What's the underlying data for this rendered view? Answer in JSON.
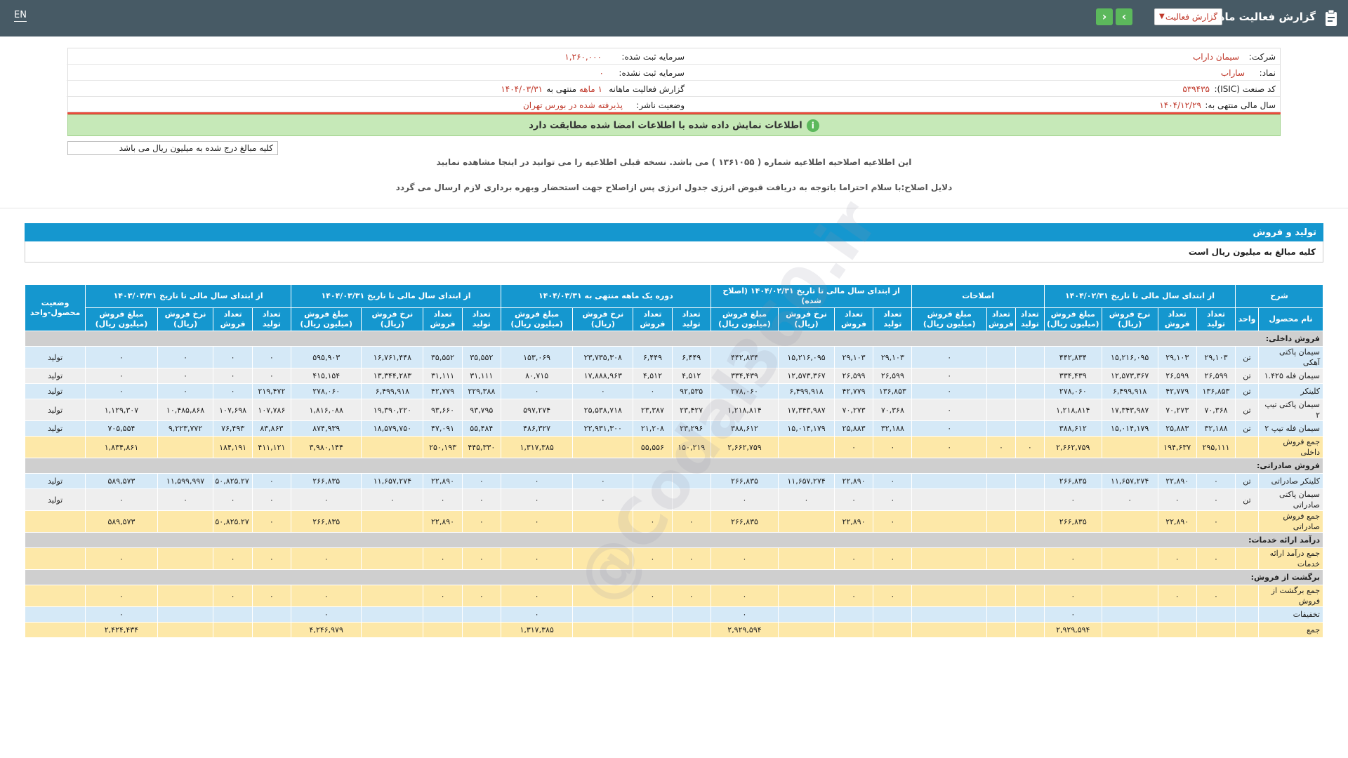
{
  "header": {
    "title": "گزارش فعالیت ماهانه",
    "report_select": "گزارش فعالیت",
    "lang": "EN"
  },
  "info": {
    "company_label": "شرکت:",
    "company": "سیمان داراب",
    "symbol_label": "نماد:",
    "symbol": "ساراب",
    "isic_label": "کد صنعت (ISIC):",
    "isic": "۵۳۹۴۳۵",
    "fiscal_label": "سال مالی منتهی به:",
    "fiscal": "۱۴۰۴/۱۲/۲۹",
    "capital_label": "سرمایه ثبت شده:",
    "capital": "۱,۲۶۰,۰۰۰",
    "unreg_capital_label": "سرمایه ثبت نشده:",
    "unreg_capital": "۰",
    "period_label": "گزارش فعالیت ماهانه",
    "period_value": "۱ ماهه",
    "period_suffix": "منتهی به",
    "period_date": "۱۴۰۴/۰۳/۳۱",
    "status_label": "وضعیت ناشر:",
    "status": "پذیرفته شده در بورس تهران"
  },
  "notice": "اطلاعات نمایش داده شده با اطلاعات امضا شده مطابقت دارد",
  "amounts_note": "کلیه مبالغ درج شده به میلیون ریال می باشد",
  "correction_note": "این اطلاعیه اصلاحیه اطلاعیه شماره ( ۱۳۶۱۰۵۵ ) می باشد. نسخه قبلی اطلاعیه را می توانید در اینجا مشاهده نمایید",
  "correction_reason": "دلایل اصلاح:با سلام احتراما باتوجه به دریافت قبوض انرژی جدول انرژی پس ازاصلاح جهت استحضار وبهره برداری لازم ارسال می گردد",
  "section": {
    "title": "تولید و فروش",
    "subtitle": "کلیه مبالغ به میلیون ریال است"
  },
  "table": {
    "groups": [
      "شرح",
      "از ابتدای سال مالی تا تاریخ ۱۴۰۴/۰۲/۳۱",
      "اصلاحات",
      "از ابتدای سال مالی تا تاریخ ۱۴۰۴/۰۲/۳۱ (اصلاح شده)",
      "دوره یک ماهه منتهی به ۱۴۰۴/۰۳/۳۱",
      "از ابتدای سال مالی تا تاریخ ۱۴۰۴/۰۳/۳۱",
      "از ابتدای سال مالی تا تاریخ ۱۴۰۳/۰۳/۳۱",
      "وضعیت محصول-واحد"
    ],
    "subheaders": {
      "name": "نام محصول",
      "unit": "واحد",
      "prod": "تعداد تولید",
      "sale": "تعداد فروش",
      "rate": "نرخ فروش (ریال)",
      "amount": "مبلغ فروش (میلیون ریال)"
    },
    "rows": [
      {
        "type": "grey",
        "cells": [
          "فروش داخلی:"
        ]
      },
      {
        "type": "blue",
        "cells": [
          "سیمان پاکتی آهکی",
          "تن",
          "۲۹,۱۰۳",
          "۲۹,۱۰۳",
          "۱۵,۲۱۶,۰۹۵",
          "۴۴۲,۸۳۴",
          "",
          "",
          "۰",
          "۲۹,۱۰۳",
          "۲۹,۱۰۳",
          "۱۵,۲۱۶,۰۹۵",
          "۴۴۲,۸۳۴",
          "۶,۴۴۹",
          "۶,۴۴۹",
          "۲۳,۷۳۵,۳۰۸",
          "۱۵۳,۰۶۹",
          "۳۵,۵۵۲",
          "۳۵,۵۵۲",
          "۱۶,۷۶۱,۴۴۸",
          "۵۹۵,۹۰۳",
          "۰",
          "۰",
          "۰",
          "۰",
          "تولید"
        ]
      },
      {
        "type": "plain",
        "cells": [
          "سیمان فله ۱.۴۲۵",
          "تن",
          "۲۶,۵۹۹",
          "۲۶,۵۹۹",
          "۱۲,۵۷۳,۳۶۷",
          "۳۳۴,۴۳۹",
          "",
          "",
          "۰",
          "۲۶,۵۹۹",
          "۲۶,۵۹۹",
          "۱۲,۵۷۳,۳۶۷",
          "۳۳۴,۴۳۹",
          "۴,۵۱۲",
          "۴,۵۱۲",
          "۱۷,۸۸۸,۹۶۳",
          "۸۰,۷۱۵",
          "۳۱,۱۱۱",
          "۳۱,۱۱۱",
          "۱۳,۳۴۴,۲۸۳",
          "۴۱۵,۱۵۴",
          "۰",
          "۰",
          "۰",
          "۰",
          "تولید"
        ]
      },
      {
        "type": "blue",
        "cells": [
          "کلینکر",
          "تن",
          "۱۳۶,۸۵۳",
          "۴۲,۷۷۹",
          "۶,۴۹۹,۹۱۸",
          "۲۷۸,۰۶۰",
          "",
          "",
          "۰",
          "۱۳۶,۸۵۳",
          "۴۲,۷۷۹",
          "۶,۴۹۹,۹۱۸",
          "۲۷۸,۰۶۰",
          "۹۲,۵۳۵",
          "۰",
          "۰",
          "۰",
          "۲۲۹,۳۸۸",
          "۴۲,۷۷۹",
          "۶,۴۹۹,۹۱۸",
          "۲۷۸,۰۶۰",
          "۲۱۹,۴۷۲",
          "۰",
          "۰",
          "۰",
          "تولید"
        ]
      },
      {
        "type": "plain",
        "cells": [
          "سیمان پاکتی تیپ ۲",
          "تن",
          "۷۰,۳۶۸",
          "۷۰,۲۷۳",
          "۱۷,۳۴۳,۹۸۷",
          "۱,۲۱۸,۸۱۴",
          "",
          "",
          "۰",
          "۷۰,۳۶۸",
          "۷۰,۲۷۳",
          "۱۷,۳۴۳,۹۸۷",
          "۱,۲۱۸,۸۱۴",
          "۲۳,۴۲۷",
          "۲۳,۳۸۷",
          "۲۵,۵۳۸,۷۱۸",
          "۵۹۷,۲۷۴",
          "۹۳,۷۹۵",
          "۹۳,۶۶۰",
          "۱۹,۳۹۰,۲۲۰",
          "۱,۸۱۶,۰۸۸",
          "۱۰۷,۷۸۶",
          "۱۰۷,۶۹۸",
          "۱۰,۴۸۵,۸۶۸",
          "۱,۱۲۹,۳۰۷",
          "تولید"
        ]
      },
      {
        "type": "blue",
        "cells": [
          "سیمان فله تیپ ۲",
          "تن",
          "۳۲,۱۸۸",
          "۲۵,۸۸۳",
          "۱۵,۰۱۴,۱۷۹",
          "۳۸۸,۶۱۲",
          "",
          "",
          "۰",
          "۳۲,۱۸۸",
          "۲۵,۸۸۳",
          "۱۵,۰۱۴,۱۷۹",
          "۳۸۸,۶۱۲",
          "۲۳,۲۹۶",
          "۲۱,۲۰۸",
          "۲۲,۹۳۱,۳۰۰",
          "۴۸۶,۳۲۷",
          "۵۵,۴۸۴",
          "۴۷,۰۹۱",
          "۱۸,۵۷۹,۷۵۰",
          "۸۷۴,۹۳۹",
          "۸۳,۸۶۳",
          "۷۶,۴۹۳",
          "۹,۲۲۳,۷۷۲",
          "۷۰۵,۵۵۴",
          "تولید"
        ]
      },
      {
        "type": "yellow",
        "cells": [
          "جمع فروش داخلی",
          "",
          "۲۹۵,۱۱۱",
          "۱۹۴,۶۳۷",
          "",
          "۲,۶۶۲,۷۵۹",
          "۰",
          "۰",
          "۰",
          "۰",
          "۰",
          "",
          "۲,۶۶۲,۷۵۹",
          "۱۵۰,۲۱۹",
          "۵۵,۵۵۶",
          "",
          "۱,۳۱۷,۳۸۵",
          "۴۴۵,۳۳۰",
          "۲۵۰,۱۹۳",
          "",
          "۳,۹۸۰,۱۴۴",
          "۴۱۱,۱۲۱",
          "۱۸۴,۱۹۱",
          "",
          "۱,۸۳۴,۸۶۱",
          ""
        ]
      },
      {
        "type": "grey",
        "cells": [
          "فروش صادراتی:"
        ]
      },
      {
        "type": "blue",
        "cells": [
          "کلینکر صادراتی",
          "تن",
          "۰",
          "۲۲,۸۹۰",
          "۱۱,۶۵۷,۲۷۴",
          "۲۶۶,۸۳۵",
          "",
          "",
          "",
          "۰",
          "۲۲,۸۹۰",
          "۱۱,۶۵۷,۲۷۴",
          "۲۶۶,۸۳۵",
          "",
          "",
          "۰",
          "۰",
          "۰",
          "۲۲,۸۹۰",
          "۱۱,۶۵۷,۲۷۴",
          "۲۶۶,۸۳۵",
          "۰",
          "۵۰,۸۲۵.۲۷",
          "۱۱,۵۹۹,۹۹۷",
          "۵۸۹,۵۷۳",
          "تولید"
        ]
      },
      {
        "type": "plain",
        "cells": [
          "سیمان پاکتی صادراتی",
          "تن",
          "۰",
          "۰",
          "۰",
          "۰",
          "",
          "",
          "",
          "۰",
          "۰",
          "۰",
          "۰",
          "",
          "",
          "۰",
          "۰",
          "۰",
          "۰",
          "۰",
          "۰",
          "۰",
          "۰",
          "۰",
          "۰",
          "تولید"
        ]
      },
      {
        "type": "yellow",
        "cells": [
          "جمع فروش صادراتی",
          "",
          "۰",
          "۲۲,۸۹۰",
          "",
          "۲۶۶,۸۳۵",
          "",
          "",
          "",
          "۰",
          "۲۲,۸۹۰",
          "",
          "۲۶۶,۸۳۵",
          "۰",
          "۰",
          "",
          "۰",
          "۰",
          "۲۲,۸۹۰",
          "",
          "۲۶۶,۸۳۵",
          "۰",
          "۵۰,۸۲۵.۲۷",
          "",
          "۵۸۹,۵۷۳",
          ""
        ]
      },
      {
        "type": "grey",
        "cells": [
          "درآمد ارائه خدمات:"
        ]
      },
      {
        "type": "yellow",
        "cells": [
          "جمع درآمد ارائه خدمات",
          "",
          "۰",
          "۰",
          "",
          "۰",
          "",
          "",
          "",
          "۰",
          "۰",
          "",
          "۰",
          "۰",
          "۰",
          "",
          "۰",
          "۰",
          "۰",
          "",
          "۰",
          "۰",
          "۰",
          "",
          "۰",
          ""
        ]
      },
      {
        "type": "grey",
        "cells": [
          "برگشت از فروش:"
        ]
      },
      {
        "type": "yellow",
        "cells": [
          "جمع برگشت از فروش",
          "",
          "۰",
          "۰",
          "",
          "۰",
          "",
          "",
          "",
          "۰",
          "۰",
          "",
          "۰",
          "۰",
          "۰",
          "",
          "۰",
          "۰",
          "۰",
          "",
          "۰",
          "۰",
          "۰",
          "",
          "۰",
          ""
        ]
      },
      {
        "type": "blue",
        "cells": [
          "تخفیفات",
          "",
          "",
          "",
          "",
          "۰",
          "",
          "",
          "",
          "",
          "",
          "",
          "۰",
          "",
          "",
          "",
          "۰",
          "",
          "",
          "",
          "۰",
          "",
          "",
          "",
          "۰",
          ""
        ]
      },
      {
        "type": "total",
        "cells": [
          "جمع",
          "",
          "",
          "",
          "",
          "۲,۹۲۹,۵۹۴",
          "",
          "",
          "",
          "",
          "",
          "",
          "۲,۹۲۹,۵۹۴",
          "",
          "",
          "",
          "۱,۳۱۷,۳۸۵",
          "",
          "",
          "",
          "۴,۲۴۶,۹۷۹",
          "",
          "",
          "",
          "۲,۴۲۴,۴۳۴",
          ""
        ]
      }
    ]
  },
  "watermark": "@Codal360.ir",
  "colors": {
    "topbar": "#475a65",
    "accent": "#1597cf",
    "green": "#5cb85c",
    "value_red": "#c0392b"
  }
}
